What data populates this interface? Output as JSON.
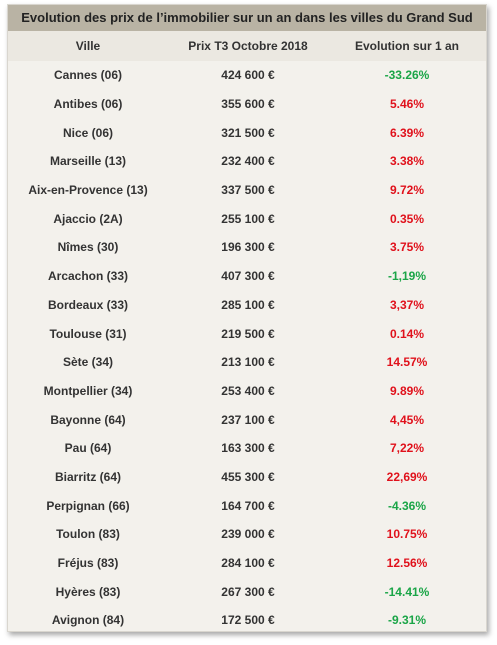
{
  "title": "Evolution des prix de l’immobilier sur un an dans les villes du Grand Sud",
  "headers": [
    "Ville",
    "Prix T3 Octobre 2018",
    "Evolution sur 1 an"
  ],
  "colors": {
    "positive": "#e0111b",
    "negative": "#1aa547",
    "title_bg": "#b9b3a4"
  },
  "rows": [
    {
      "ville": "Cannes (06)",
      "prix": "424 600 €",
      "evolution": "-33.26%",
      "trend": "neg"
    },
    {
      "ville": "Antibes (06)",
      "prix": "355 600 €",
      "evolution": "5.46%",
      "trend": "pos"
    },
    {
      "ville": "Nice (06)",
      "prix": "321 500 €",
      "evolution": "6.39%",
      "trend": "pos"
    },
    {
      "ville": "Marseille (13)",
      "prix": "232 400 €",
      "evolution": "3.38%",
      "trend": "pos"
    },
    {
      "ville": "Aix-en-Provence (13)",
      "prix": "337 500 €",
      "evolution": "9.72%",
      "trend": "pos"
    },
    {
      "ville": "Ajaccio (2A)",
      "prix": "255 100 €",
      "evolution": "0.35%",
      "trend": "pos"
    },
    {
      "ville": "Nîmes (30)",
      "prix": "196 300 €",
      "evolution": "3.75%",
      "trend": "pos"
    },
    {
      "ville": "Arcachon (33)",
      "prix": "407 300 €",
      "evolution": "-1,19%",
      "trend": "neg"
    },
    {
      "ville": "Bordeaux (33)",
      "prix": "285 100 €",
      "evolution": "3,37%",
      "trend": "pos"
    },
    {
      "ville": "Toulouse (31)",
      "prix": "219 500 €",
      "evolution": "0.14%",
      "trend": "pos"
    },
    {
      "ville": "Sète (34)",
      "prix": "213 100 €",
      "evolution": "14.57%",
      "trend": "pos"
    },
    {
      "ville": "Montpellier (34)",
      "prix": "253 400 €",
      "evolution": "9.89%",
      "trend": "pos"
    },
    {
      "ville": "Bayonne (64)",
      "prix": "237 100 €",
      "evolution": "4,45%",
      "trend": "pos"
    },
    {
      "ville": "Pau (64)",
      "prix": "163 300 €",
      "evolution": "7,22%",
      "trend": "pos"
    },
    {
      "ville": "Biarritz (64)",
      "prix": "455 300 €",
      "evolution": "22,69%",
      "trend": "pos"
    },
    {
      "ville": "Perpignan (66)",
      "prix": "164 700 €",
      "evolution": "-4.36%",
      "trend": "neg"
    },
    {
      "ville": "Toulon (83)",
      "prix": "239 000 €",
      "evolution": "10.75%",
      "trend": "pos"
    },
    {
      "ville": "Fréjus (83)",
      "prix": "284 100 €",
      "evolution": "12.56%",
      "trend": "pos"
    },
    {
      "ville": "Hyères (83)",
      "prix": "267 300 €",
      "evolution": "-14.41%",
      "trend": "neg"
    },
    {
      "ville": "Avignon (84)",
      "prix": "172 500 €",
      "evolution": "-9.31%",
      "trend": "neg"
    }
  ]
}
